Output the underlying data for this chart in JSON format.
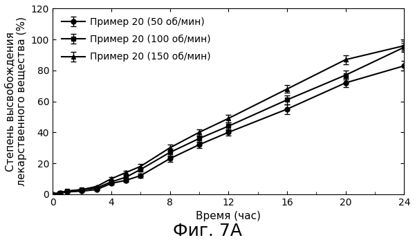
{
  "title": "Фиг. 7А",
  "xlabel": "Время (час)",
  "ylabel": "Степень высвобождения\nлекарственного вещества (%)",
  "xlim": [
    0,
    24
  ],
  "ylim": [
    0,
    120
  ],
  "xticks": [
    0,
    4,
    8,
    12,
    16,
    20,
    24
  ],
  "yticks": [
    0,
    20,
    40,
    60,
    80,
    100,
    120
  ],
  "series": [
    {
      "label": "Пример 20 (50 об/мин)",
      "x": [
        0,
        0.5,
        1,
        2,
        3,
        4,
        5,
        6,
        8,
        10,
        12,
        16,
        20,
        24
      ],
      "y": [
        0,
        1,
        1.5,
        2,
        3,
        7,
        9,
        12,
        23,
        32,
        40,
        55,
        72,
        83
      ],
      "yerr": [
        0,
        0.5,
        0.5,
        0.5,
        0.5,
        1,
        1,
        1.5,
        2,
        2,
        2,
        3,
        3,
        3
      ],
      "marker": "o",
      "color": "#000000",
      "linestyle": "-"
    },
    {
      "label": "Пример 20 (100 об/мин)",
      "x": [
        0,
        0.5,
        1,
        2,
        3,
        4,
        5,
        6,
        8,
        10,
        12,
        16,
        20,
        24
      ],
      "y": [
        0,
        1,
        2,
        3,
        4,
        8,
        11,
        16,
        27,
        36,
        44,
        61,
        77,
        95
      ],
      "yerr": [
        0,
        0.5,
        0.5,
        0.5,
        0.5,
        1,
        1,
        1.5,
        2.5,
        2,
        2.5,
        3,
        3,
        3
      ],
      "marker": "s",
      "color": "#000000",
      "linestyle": "-"
    },
    {
      "label": "Пример 20 (150 об/мин)",
      "x": [
        0,
        0.5,
        1,
        2,
        3,
        4,
        5,
        6,
        8,
        10,
        12,
        16,
        20,
        24
      ],
      "y": [
        0,
        1,
        2,
        3,
        5,
        10,
        14,
        18,
        30,
        40,
        49,
        68,
        87,
        96
      ],
      "yerr": [
        0,
        0.5,
        0.5,
        0.5,
        0.5,
        1,
        1,
        1.5,
        2,
        2,
        2.5,
        2.5,
        3,
        3
      ],
      "marker": "^",
      "color": "#000000",
      "linestyle": "-"
    }
  ],
  "background_color": "#ffffff",
  "legend_loc": "upper left",
  "legend_fontsize": 10,
  "axis_fontsize": 11,
  "title_fontsize": 18,
  "tick_fontsize": 10,
  "markersize": 5,
  "linewidth": 1.5,
  "capsize": 3,
  "elinewidth": 1
}
